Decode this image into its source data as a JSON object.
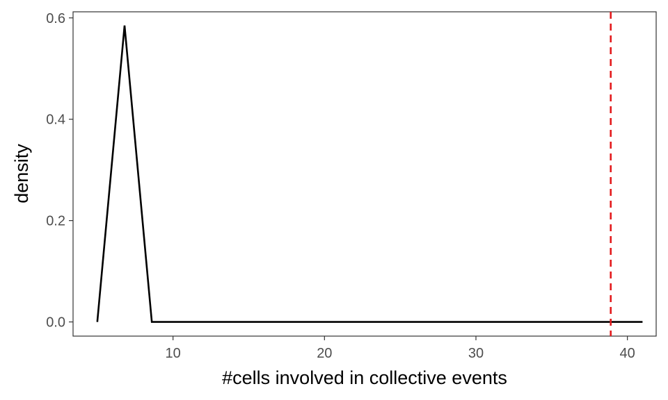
{
  "chart_data": {
    "type": "line",
    "title": "",
    "xlabel": "#cells involved in collective events",
    "ylabel": "density",
    "xlim": [
      3.4,
      41.9
    ],
    "ylim": [
      -0.028,
      0.612
    ],
    "x_ticks": [
      10,
      20,
      30,
      40
    ],
    "y_ticks": [
      0.0,
      0.2,
      0.4,
      0.6
    ],
    "x_tick_labels": [
      "10",
      "20",
      "30",
      "40"
    ],
    "y_tick_labels": [
      "0.0",
      "0.2",
      "0.4",
      "0.6"
    ],
    "grid": false,
    "legend": "none",
    "series": [
      {
        "color": "#000000",
        "x": [
          5.0,
          6.8,
          8.6,
          41.0
        ],
        "y": [
          0.0,
          0.585,
          0.0,
          0.0
        ]
      }
    ],
    "reference_lines": [
      {
        "orientation": "vertical",
        "x": 38.9,
        "style": "dashed",
        "color": "#e31a1c"
      }
    ]
  }
}
